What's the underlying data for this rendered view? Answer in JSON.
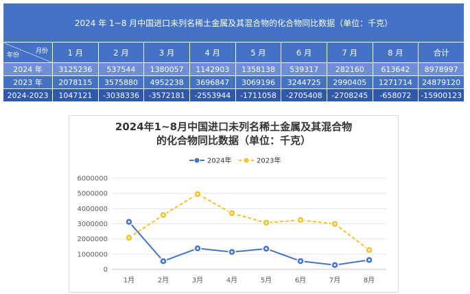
{
  "table": {
    "title": "2024 年 1~8 月中国进口未列名稀土金属及其混合物的化合物同比数据（单位：千克）",
    "corner_month_label": "月份",
    "corner_year_label": "年份",
    "columns": [
      "1 月",
      "2 月",
      "3 月",
      "4 月",
      "5 月",
      "6 月",
      "7 月",
      "8 月",
      "合计"
    ],
    "rows": [
      {
        "label": "2024 年",
        "values": [
          "3125236",
          "537544",
          "1380057",
          "1142903",
          "1358138",
          "539317",
          "282160",
          "613642",
          "8978997"
        ]
      },
      {
        "label": "2023 年",
        "values": [
          "2078115",
          "3575880",
          "4952238",
          "3696847",
          "3069196",
          "3244725",
          "2990405",
          "1271714",
          "24879120"
        ]
      },
      {
        "label": "2024-2023",
        "values": [
          "1047121",
          "-3038336",
          "-3572181",
          "-2553944",
          "-1711058",
          "-2705408",
          "-2708245",
          "-658072",
          "-15900123"
        ]
      }
    ]
  },
  "chart": {
    "title_line1": "2024年1~8月中国进口未列名稀土金属及其混合物",
    "title_line2": "的化合物同比数据（单位：千克）"
  },
  "chart_data": {
    "type": "line",
    "categories": [
      "1月",
      "2月",
      "3月",
      "4月",
      "5月",
      "6月",
      "7月",
      "8月"
    ],
    "series": [
      {
        "name": "2024年",
        "color": "#4472c4",
        "dash": "solid",
        "values": [
          3125236,
          537544,
          1380057,
          1142903,
          1358138,
          539317,
          282160,
          613642
        ]
      },
      {
        "name": "2023年",
        "color": "#f2c12e",
        "dash": "dashed",
        "values": [
          2078115,
          3575880,
          4952238,
          3696847,
          3069196,
          3244725,
          2990405,
          1271714
        ]
      }
    ],
    "yticks": [
      "0",
      "1000000",
      "2000000",
      "3000000",
      "4000000",
      "5000000",
      "6000000"
    ],
    "ylim": [
      0,
      6000000
    ],
    "grid": true,
    "legend_position": "top-center"
  }
}
